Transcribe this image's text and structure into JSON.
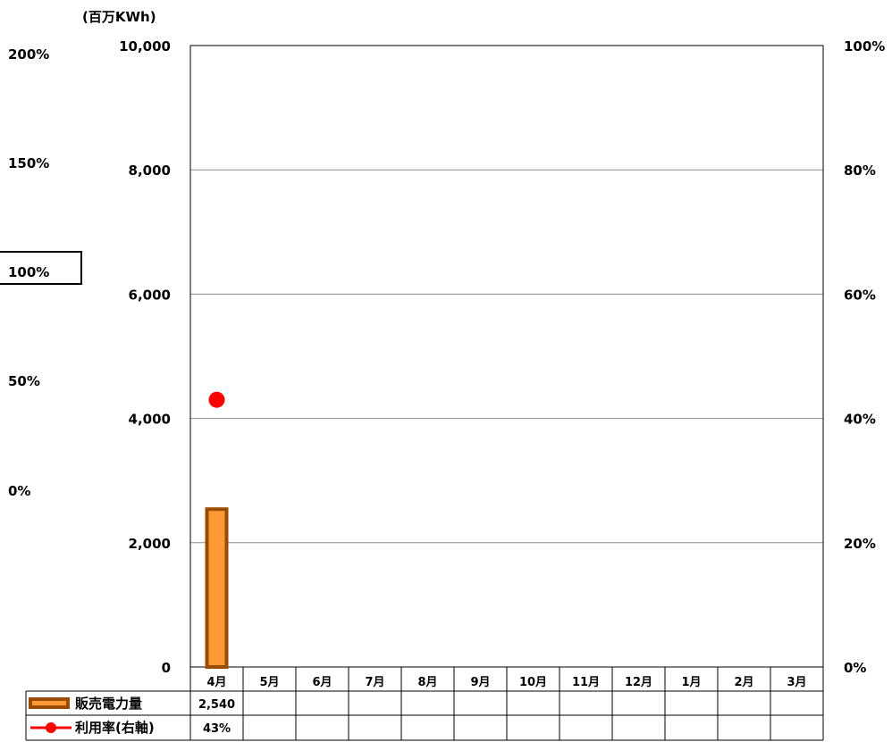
{
  "unit_label": "(百万KWh)",
  "outer_left_axis": {
    "ticks": [
      "200%",
      "150%",
      "100%",
      "50%",
      "0%"
    ],
    "highlighted": "100%"
  },
  "chart_data": {
    "type": "bar",
    "categories": [
      "4月",
      "5月",
      "6月",
      "7月",
      "8月",
      "9月",
      "10月",
      "11月",
      "12月",
      "1月",
      "2月",
      "3月"
    ],
    "series": [
      {
        "name": "販売電力量",
        "type": "bar",
        "axis": "left",
        "values": [
          2540,
          null,
          null,
          null,
          null,
          null,
          null,
          null,
          null,
          null,
          null,
          null
        ],
        "labels": [
          "2,540",
          "",
          "",
          "",
          "",
          "",
          "",
          "",
          "",
          "",
          "",
          ""
        ],
        "color": "#FF9933",
        "border_color": "#994C00"
      },
      {
        "name": "利用率(右軸)",
        "type": "line",
        "axis": "right",
        "values": [
          43,
          null,
          null,
          null,
          null,
          null,
          null,
          null,
          null,
          null,
          null,
          null
        ],
        "labels": [
          "43%",
          "",
          "",
          "",
          "",
          "",
          "",
          "",
          "",
          "",
          "",
          ""
        ],
        "color": "#FF0000"
      }
    ],
    "ylim": [
      0,
      10000
    ],
    "y_ticks": [
      "0",
      "2,000",
      "4,000",
      "6,000",
      "8,000",
      "10,000"
    ],
    "y2lim": [
      0,
      100
    ],
    "y2_ticks": [
      "0%",
      "20%",
      "40%",
      "60%",
      "80%",
      "100%"
    ],
    "grid": true,
    "data_table": true
  }
}
